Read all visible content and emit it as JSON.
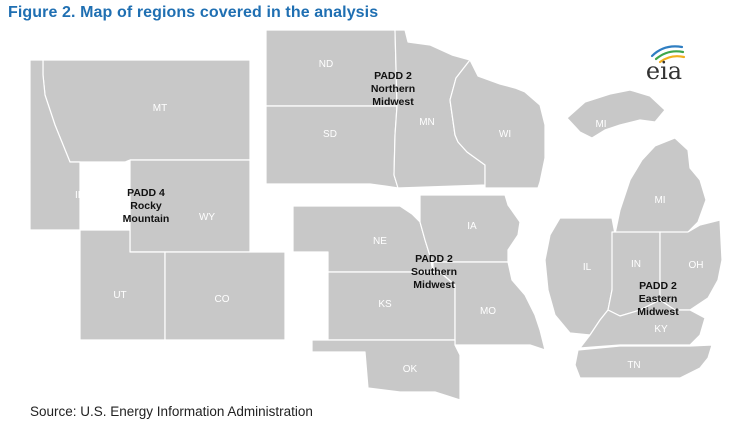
{
  "title": "Figure 2. Map of regions covered in the analysis",
  "source": "Source: U.S. Energy Information Administration",
  "logo": {
    "text": "eia",
    "arc_colors": [
      "#2f7ec2",
      "#3ea64b",
      "#f2b01e"
    ]
  },
  "colors": {
    "title": "#1f6fb2",
    "state_fill": "#c8c8c8",
    "state_border": "#ffffff",
    "state_label": "#ffffff",
    "region_label": "#111111"
  },
  "regions": [
    {
      "name": "PADD 4 Rocky Mountain",
      "label_lines": [
        "PADD 4",
        "Rocky",
        "Mountain"
      ],
      "states": [
        "MT",
        "ID",
        "WY",
        "UT",
        "CO"
      ]
    },
    {
      "name": "PADD 2 Northern Midwest",
      "label_lines": [
        "PADD 2",
        "Northern",
        "Midwest"
      ],
      "states": [
        "ND",
        "SD",
        "MN",
        "WI"
      ]
    },
    {
      "name": "PADD 2 Southern Midwest",
      "label_lines": [
        "PADD 2",
        "Southern",
        "Midwest"
      ],
      "states": [
        "NE",
        "IA",
        "KS",
        "MO",
        "OK"
      ]
    },
    {
      "name": "PADD 2 Eastern Midwest",
      "label_lines": [
        "PADD 2",
        "Eastern",
        "Midwest"
      ],
      "states": [
        "MI",
        "MI",
        "IL",
        "IN",
        "OH",
        "KY",
        "TN"
      ]
    }
  ]
}
